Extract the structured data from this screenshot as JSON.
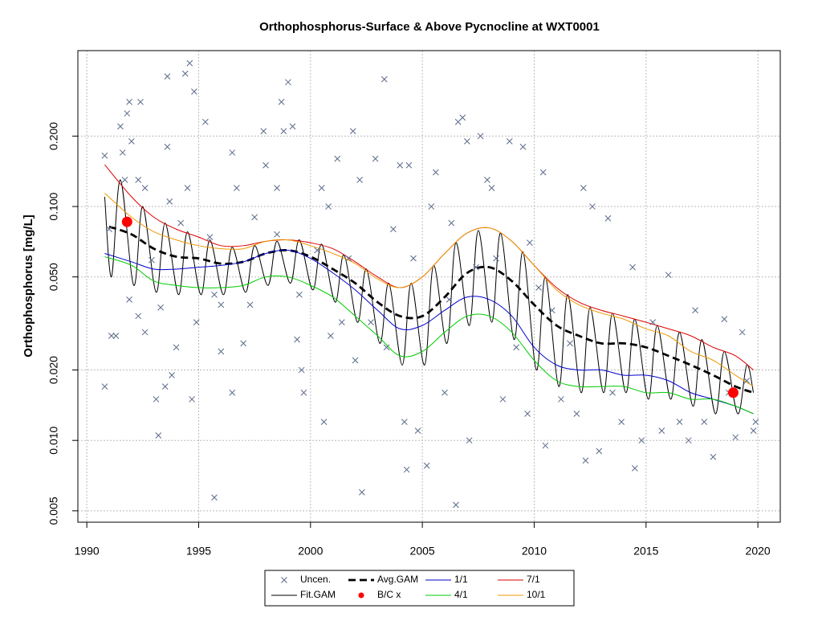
{
  "chart_data": {
    "type": "line",
    "title": "Orthophosphorus-Surface & Above Pycnocline at WXT0001",
    "y_label": "Orthophosphorus [mg/L]",
    "log_y": true,
    "grid": true,
    "legend": "bottom",
    "xlim": [
      1989.6,
      2021.0
    ],
    "ylim": [
      0.00447,
      0.464
    ],
    "xticks": [
      1990,
      1995,
      2000,
      2005,
      2010,
      2015,
      2020
    ],
    "yticks": [
      0.005,
      {
        "value": 0.01,
        "label": "0.010"
      },
      {
        "value": 0.02,
        "label": "0.020"
      },
      {
        "value": 0.05,
        "label": "0.050"
      },
      {
        "value": 0.1,
        "label": "0.100"
      },
      {
        "value": 0.2,
        "label": "0.200"
      }
    ],
    "series": [
      {
        "name": "Uncen.",
        "color": "#5a6a8a",
        "marker": "x",
        "x": [
          1990.8,
          1990.8,
          1991.0,
          1991.1,
          1991.3,
          1991.5,
          1991.6,
          1991.7,
          1991.8,
          1991.9,
          1992.0,
          1991.9,
          1992.3,
          1992.4,
          1992.3,
          1992.6,
          1992.6,
          1992.9,
          1993.1,
          1993.2,
          1993.3,
          1993.5,
          1993.6,
          1993.6,
          1993.7,
          1993.8,
          1994.0,
          1994.2,
          1994.4,
          1994.5,
          1994.6,
          1994.7,
          1994.8,
          1994.9,
          1995.3,
          1995.5,
          1995.7,
          1995.7,
          1996.0,
          1996.0,
          1996.5,
          1996.5,
          1996.7,
          1997.0,
          1997.3,
          1997.5,
          1997.9,
          1998.0,
          1998.5,
          1998.5,
          1998.7,
          1998.8,
          1999.0,
          1999.2,
          1999.4,
          1999.5,
          1999.6,
          1999.7,
          2000.3,
          2000.5,
          2000.6,
          2000.8,
          2000.9,
          2001.2,
          2001.4,
          2001.7,
          2001.9,
          2002.0,
          2002.2,
          2002.3,
          2002.7,
          2002.9,
          2003.3,
          2003.4,
          2003.7,
          2004.0,
          2004.2,
          2004.3,
          2004.4,
          2004.6,
          2004.8,
          2005.2,
          2005.4,
          2005.6,
          2006.0,
          2006.2,
          2006.3,
          2006.5,
          2006.6,
          2006.8,
          2007.0,
          2007.1,
          2007.4,
          2007.6,
          2007.9,
          2008.1,
          2008.3,
          2008.6,
          2008.9,
          2009.2,
          2009.5,
          2009.7,
          2009.8,
          2010.2,
          2010.4,
          2010.5,
          2010.8,
          2011.2,
          2011.6,
          2011.9,
          2012.2,
          2012.3,
          2012.6,
          2012.9,
          2013.3,
          2013.5,
          2013.9,
          2014.4,
          2014.5,
          2014.8,
          2015.3,
          2015.7,
          2016.0,
          2016.5,
          2016.9,
          2017.2,
          2017.6,
          2018.0,
          2018.5,
          2018.7,
          2019.0,
          2019.3,
          2019.5,
          2019.8,
          2019.9
        ],
        "values": [
          0.165,
          0.017,
          0.08,
          0.028,
          0.028,
          0.22,
          0.17,
          0.13,
          0.25,
          0.28,
          0.19,
          0.04,
          0.034,
          0.28,
          0.13,
          0.12,
          0.029,
          0.059,
          0.015,
          0.0105,
          0.037,
          0.017,
          0.36,
          0.18,
          0.105,
          0.019,
          0.025,
          0.085,
          0.37,
          0.12,
          0.41,
          0.015,
          0.31,
          0.032,
          0.23,
          0.074,
          0.042,
          0.0057,
          0.024,
          0.038,
          0.17,
          0.016,
          0.12,
          0.026,
          0.038,
          0.09,
          0.21,
          0.15,
          0.076,
          0.12,
          0.28,
          0.21,
          0.34,
          0.22,
          0.027,
          0.042,
          0.02,
          0.016,
          0.065,
          0.12,
          0.012,
          0.1,
          0.028,
          0.16,
          0.032,
          0.06,
          0.21,
          0.022,
          0.13,
          0.006,
          0.032,
          0.16,
          0.35,
          0.025,
          0.08,
          0.15,
          0.012,
          0.0075,
          0.15,
          0.06,
          0.011,
          0.0078,
          0.1,
          0.14,
          0.016,
          0.04,
          0.085,
          0.0053,
          0.23,
          0.24,
          0.19,
          0.01,
          0.055,
          0.2,
          0.13,
          0.12,
          0.06,
          0.015,
          0.19,
          0.025,
          0.18,
          0.013,
          0.07,
          0.045,
          0.14,
          0.0095,
          0.036,
          0.015,
          0.026,
          0.013,
          0.12,
          0.0082,
          0.1,
          0.009,
          0.089,
          0.016,
          0.012,
          0.055,
          0.0076,
          0.01,
          0.032,
          0.011,
          0.051,
          0.012,
          0.01,
          0.036,
          0.012,
          0.0085,
          0.033,
          0.016,
          0.0103,
          0.029,
          0.018,
          0.011,
          0.012
        ]
      },
      {
        "name": "Fit.GAM",
        "color": "#000000",
        "x": [
          1990.8,
          1991.1,
          1991.5,
          1992.1,
          1992.5,
          1993.1,
          1993.5,
          1994.1,
          1994.5,
          1995.1,
          1995.5,
          1996.1,
          1996.5,
          1997.1,
          1997.5,
          1998.1,
          1998.5,
          1999.1,
          1999.5,
          2000.1,
          2000.5,
          2001.1,
          2001.5,
          2002.1,
          2002.5,
          2003.1,
          2003.5,
          2004.1,
          2004.5,
          2005.1,
          2005.5,
          2006.1,
          2006.5,
          2007.1,
          2007.5,
          2008.1,
          2008.5,
          2009.1,
          2009.5,
          2010.1,
          2010.5,
          2011.1,
          2011.5,
          2012.1,
          2012.5,
          2013.1,
          2013.5,
          2014.1,
          2014.5,
          2015.1,
          2015.5,
          2016.1,
          2016.5,
          2017.1,
          2017.5,
          2018.1,
          2018.5,
          2019.1,
          2019.5,
          2019.8
        ],
        "values": [
          0.11,
          0.05,
          0.13,
          0.046,
          0.1,
          0.043,
          0.085,
          0.042,
          0.078,
          0.042,
          0.072,
          0.042,
          0.067,
          0.043,
          0.068,
          0.046,
          0.071,
          0.047,
          0.072,
          0.044,
          0.069,
          0.039,
          0.062,
          0.032,
          0.054,
          0.026,
          0.047,
          0.021,
          0.047,
          0.021,
          0.056,
          0.026,
          0.07,
          0.031,
          0.079,
          0.032,
          0.077,
          0.027,
          0.064,
          0.02,
          0.05,
          0.017,
          0.042,
          0.016,
          0.037,
          0.016,
          0.035,
          0.016,
          0.033,
          0.015,
          0.031,
          0.015,
          0.029,
          0.014,
          0.027,
          0.013,
          0.024,
          0.013,
          0.021,
          0.016
        ]
      },
      {
        "name": "Avg.GAM",
        "color": "#000000",
        "line_style": "dashed",
        "x": [
          1991,
          1992,
          1993,
          1994,
          1995,
          1996,
          1997,
          1998,
          1999,
          2000,
          2001,
          2002,
          2003,
          2004,
          2005,
          2006,
          2007,
          2008,
          2009,
          2010,
          2011,
          2012,
          2013,
          2014,
          2015,
          2016,
          2017,
          2018,
          2019,
          2019.8
        ],
        "values": [
          0.082,
          0.076,
          0.066,
          0.061,
          0.06,
          0.057,
          0.058,
          0.063,
          0.065,
          0.061,
          0.054,
          0.047,
          0.039,
          0.034,
          0.034,
          0.041,
          0.052,
          0.055,
          0.048,
          0.038,
          0.031,
          0.028,
          0.026,
          0.026,
          0.025,
          0.023,
          0.021,
          0.019,
          0.017,
          0.016
        ]
      },
      {
        "name": "B/C x",
        "color": "#ff0000",
        "marker": "dot",
        "x": [
          1991.8,
          2018.9
        ],
        "values": [
          0.086,
          0.016
        ]
      },
      {
        "name": "1/1",
        "color": "#0000cc",
        "x": [
          1990.8,
          1992,
          1993,
          1994,
          1995,
          1996,
          1997,
          1998,
          1999,
          2000,
          2001,
          2002,
          2003,
          2004,
          2005,
          2006,
          2007,
          2008,
          2009,
          2010,
          2011,
          2012,
          2013,
          2014,
          2015,
          2016,
          2017,
          2018,
          2019,
          2019.8
        ],
        "values": [
          0.063,
          0.058,
          0.054,
          0.054,
          0.055,
          0.056,
          0.058,
          0.063,
          0.065,
          0.06,
          0.052,
          0.044,
          0.036,
          0.03,
          0.031,
          0.036,
          0.041,
          0.04,
          0.034,
          0.025,
          0.021,
          0.02,
          0.02,
          0.019,
          0.019,
          0.018,
          0.016,
          0.015,
          0.014,
          0.013
        ]
      },
      {
        "name": "4/1",
        "color": "#00cc00",
        "x": [
          1990.8,
          1992,
          1993,
          1994,
          1995,
          1996,
          1997,
          1998,
          1999,
          2000,
          2001,
          2002,
          2003,
          2004,
          2005,
          2006,
          2007,
          2008,
          2009,
          2010,
          2011,
          2012,
          2013,
          2014,
          2015,
          2016,
          2017,
          2018,
          2019,
          2019.8
        ],
        "values": [
          0.061,
          0.056,
          0.048,
          0.046,
          0.045,
          0.045,
          0.046,
          0.05,
          0.05,
          0.046,
          0.041,
          0.034,
          0.028,
          0.023,
          0.024,
          0.029,
          0.034,
          0.034,
          0.029,
          0.022,
          0.018,
          0.017,
          0.017,
          0.017,
          0.016,
          0.016,
          0.015,
          0.015,
          0.014,
          0.013
        ]
      },
      {
        "name": "7/1",
        "color": "#dd0000",
        "x": [
          1990.8,
          1992,
          1993,
          1994,
          1995,
          1996,
          1997,
          1998,
          1999,
          2000,
          2001,
          2002,
          2003,
          2004,
          2005,
          2006,
          2007,
          2008,
          2009,
          2010,
          2011,
          2012,
          2013,
          2014,
          2015,
          2016,
          2017,
          2018,
          2019,
          2019.8
        ],
        "values": [
          0.151,
          0.11,
          0.09,
          0.08,
          0.074,
          0.068,
          0.068,
          0.071,
          0.072,
          0.07,
          0.066,
          0.058,
          0.05,
          0.045,
          0.05,
          0.063,
          0.077,
          0.081,
          0.071,
          0.056,
          0.045,
          0.039,
          0.036,
          0.034,
          0.032,
          0.03,
          0.028,
          0.025,
          0.023,
          0.02
        ]
      },
      {
        "name": "10/1",
        "color": "#ee9900",
        "x": [
          1990.8,
          1992,
          1993,
          1994,
          1995,
          1996,
          1997,
          1998,
          1999,
          2000,
          2001,
          2002,
          2003,
          2004,
          2005,
          2006,
          2007,
          2008,
          2009,
          2010,
          2011,
          2012,
          2013,
          2014,
          2015,
          2016,
          2017,
          2018,
          2019,
          2019.8
        ],
        "values": [
          0.114,
          0.09,
          0.078,
          0.072,
          0.068,
          0.066,
          0.066,
          0.071,
          0.072,
          0.068,
          0.063,
          0.057,
          0.049,
          0.045,
          0.05,
          0.063,
          0.077,
          0.081,
          0.071,
          0.056,
          0.044,
          0.038,
          0.035,
          0.033,
          0.03,
          0.028,
          0.024,
          0.022,
          0.019,
          0.017
        ]
      }
    ]
  }
}
